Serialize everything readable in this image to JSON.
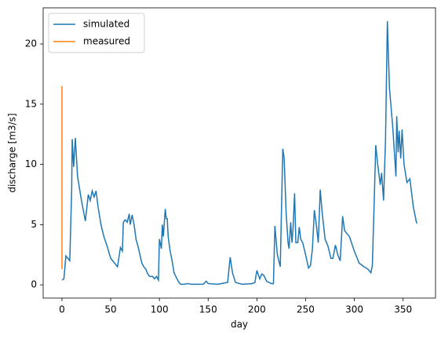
{
  "chart_data": {
    "type": "line",
    "x_label": "day",
    "y_label": "discharge [m3/s]",
    "xlim": [
      -19.3,
      383.3
    ],
    "xticks": [
      0,
      50,
      100,
      150,
      200,
      250,
      300,
      350
    ],
    "ylim": [
      -1.1,
      23
    ],
    "yticks": [
      0,
      5,
      10,
      15,
      20
    ],
    "grid": false,
    "legend": "upper left",
    "series": [
      {
        "name": "simulated",
        "color": "#1f77b4",
        "x": [
          0,
          2,
          4,
          8,
          10,
          10.5,
          12,
          13.7,
          16,
          20,
          24,
          27,
          29,
          31,
          33,
          35,
          37,
          40,
          43,
          46,
          50,
          55,
          57,
          60,
          62,
          63,
          65,
          67,
          69,
          70,
          72,
          74,
          76,
          78,
          80,
          82,
          84,
          86,
          88,
          90,
          93,
          95,
          97,
          99,
          100,
          102,
          103,
          104,
          106,
          107,
          108,
          109,
          111,
          113,
          115,
          118,
          120,
          121,
          122,
          123,
          124,
          126,
          128,
          130,
          132,
          135,
          140,
          145,
          148,
          150,
          160,
          170,
          172.6,
          175,
          178,
          185,
          195,
          198,
          200,
          203,
          205,
          207,
          210,
          215,
          217,
          218.5,
          221,
          224,
          226.6,
          228,
          230,
          232,
          233,
          234.7,
          236,
          237,
          238.7,
          240,
          242,
          243.5,
          245,
          247,
          250,
          253,
          255,
          257,
          259,
          261,
          263,
          265,
          267,
          270,
          273,
          276,
          278,
          280.6,
          283,
          285.5,
          288,
          290,
          295,
          300,
          305,
          310,
          314,
          317,
          318.5,
          320,
          322,
          324,
          326.6,
          328,
          330,
          332,
          333.9,
          336,
          339.5,
          342.7,
          343.5,
          345,
          346,
          347.6,
          349,
          351,
          354,
          357,
          360.5,
          363.7,
          364.5
        ],
        "values": [
          0.4,
          0.5,
          2.4,
          2.0,
          8.0,
          12.1,
          9.8,
          12.2,
          9.0,
          7.0,
          5.3,
          7.5,
          7.0,
          7.8,
          7.3,
          7.8,
          6.5,
          5.0,
          4.0,
          3.3,
          2.2,
          1.7,
          1.5,
          3.1,
          2.8,
          5.2,
          5.4,
          5.2,
          5.9,
          5.0,
          5.8,
          5.0,
          3.8,
          3.2,
          2.5,
          1.8,
          1.5,
          1.3,
          0.9,
          0.7,
          0.7,
          0.5,
          0.7,
          0.4,
          3.8,
          3.0,
          5.0,
          4.0,
          6.3,
          5.5,
          5.5,
          4.0,
          2.8,
          2.0,
          1.0,
          0.5,
          0.2,
          0.1,
          0.05,
          0.05,
          0.05,
          0.05,
          0.1,
          0.1,
          0.05,
          0.05,
          0.05,
          0.05,
          0.3,
          0.1,
          0.05,
          0.2,
          2.3,
          1.0,
          0.2,
          0.05,
          0.1,
          0.2,
          1.2,
          0.5,
          0.9,
          0.8,
          0.3,
          0.1,
          0.1,
          4.9,
          2.5,
          1.5,
          11.3,
          10.5,
          6.0,
          3.5,
          3.0,
          5.2,
          3.5,
          4.5,
          7.6,
          3.5,
          3.5,
          4.8,
          3.8,
          3.5,
          2.5,
          1.4,
          1.6,
          3.0,
          6.2,
          5.0,
          3.5,
          7.9,
          6.0,
          3.8,
          3.2,
          2.2,
          2.2,
          3.3,
          2.5,
          2.0,
          5.7,
          4.5,
          4.0,
          2.8,
          1.8,
          1.5,
          1.3,
          1.0,
          1.6,
          5.8,
          11.6,
          10.0,
          8.3,
          9.3,
          7.0,
          12.0,
          21.9,
          16.4,
          13.0,
          9.0,
          14.0,
          11.0,
          12.8,
          10.5,
          12.9,
          10.0,
          8.5,
          8.8,
          6.5,
          5.2,
          5.1
        ]
      },
      {
        "name": "measured",
        "color": "#ff7f0e",
        "x": [
          0,
          0
        ],
        "values": [
          1.3,
          16.5
        ]
      }
    ]
  }
}
